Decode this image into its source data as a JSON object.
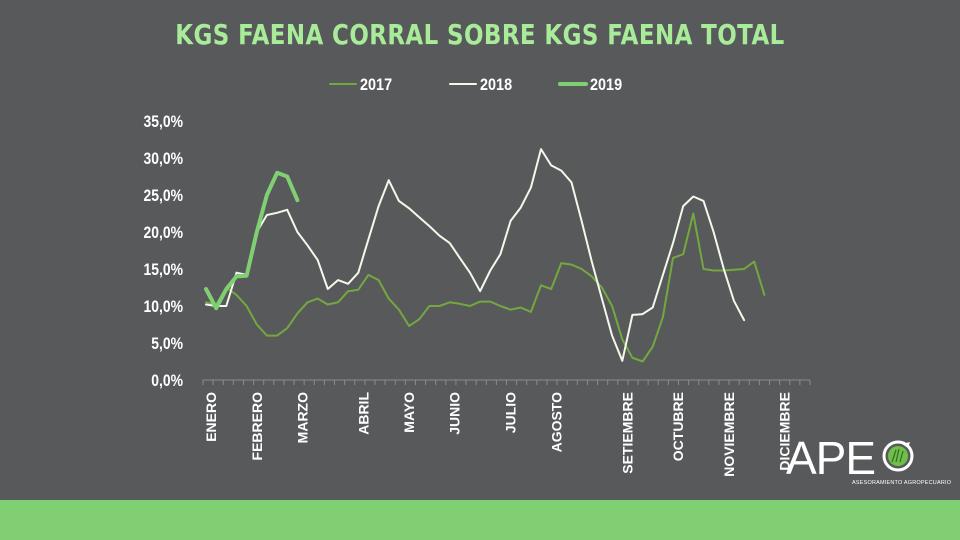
{
  "chart_data": {
    "type": "line",
    "title": "KGS FAENA CORRAL SOBRE KGS FAENA TOTAL",
    "xlabel": "",
    "ylabel": "",
    "ylim": [
      0,
      35
    ],
    "yticks": [
      "0,0%",
      "5,0%",
      "10,0%",
      "15,0%",
      "20,0%",
      "25,0%",
      "30,0%",
      "35,0%"
    ],
    "month_labels": [
      "ENERO",
      "FEBRERO",
      "MARZO",
      "ABRIL",
      "MAYO",
      "JUNIO",
      "JULIO",
      "AGOSTO",
      "SETIEMBRE",
      "OCTUBRE",
      "NOVIEMBRE",
      "DICIEMBRE"
    ],
    "month_label_weeks": [
      0.5,
      5,
      9.5,
      15.5,
      20,
      24.5,
      30,
      34.5,
      41.5,
      46.5,
      51.5,
      57
    ],
    "weeks": 60,
    "legend_position": "top",
    "grid": false,
    "series": [
      {
        "name": "2017",
        "color": "#74a83f",
        "width": 2,
        "values": [
          10.5,
          10.2,
          12.5,
          11.5,
          10.0,
          7.5,
          6.0,
          6.0,
          7.0,
          9.0,
          10.5,
          11.0,
          10.2,
          10.5,
          12.0,
          12.2,
          14.2,
          13.5,
          11.0,
          9.5,
          7.3,
          8.2,
          10.0,
          10.0,
          10.5,
          10.3,
          10.0,
          10.6,
          10.6,
          10.0,
          9.5,
          9.8,
          9.2,
          12.8,
          12.3,
          15.8,
          15.6,
          15.0,
          14.0,
          12.5,
          10.0,
          5.5,
          3.0,
          2.5,
          4.5,
          8.5,
          16.5,
          17.0,
          22.5,
          15.0,
          14.8,
          14.8,
          14.9,
          15.0,
          16.0,
          11.5
        ]
      },
      {
        "name": "2018",
        "color": "#f3f9ea",
        "width": 2,
        "values": [
          10.2,
          10.0,
          10.0,
          14.5,
          14.2,
          20.0,
          22.3,
          22.6,
          23.0,
          20.0,
          18.2,
          16.2,
          12.3,
          13.5,
          13.0,
          14.5,
          19.0,
          23.5,
          27.0,
          24.2,
          23.2,
          22.0,
          20.8,
          19.5,
          18.5,
          16.5,
          14.5,
          12.0,
          14.8,
          17.0,
          21.5,
          23.3,
          26.0,
          31.2,
          29.0,
          28.3,
          26.7,
          21.5,
          16.0,
          11.0,
          6.0,
          2.6,
          8.8,
          8.9,
          9.8,
          14.2,
          18.5,
          23.5,
          24.8,
          24.2,
          20.0,
          15.0,
          10.7,
          8.1
        ]
      },
      {
        "name": "2019",
        "color": "#80cf72",
        "width": 4,
        "values": [
          12.3,
          9.7,
          12.3,
          14.0,
          14.1,
          20.0,
          25.0,
          28.0,
          27.5,
          24.3
        ]
      }
    ]
  },
  "logo": {
    "text": "APE",
    "subtitle": "ASESORAMIENTO AGROPECUARIO"
  }
}
